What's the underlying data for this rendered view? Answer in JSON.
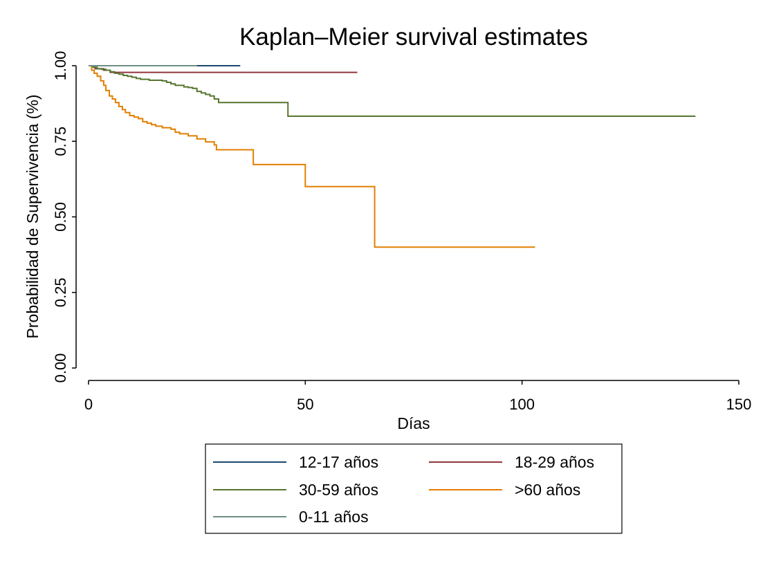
{
  "chart_data": {
    "type": "line",
    "title": "Kaplan–Meier survival estimates",
    "xlabel": "Días",
    "ylabel": "Probabilidad de Supervivencia (%)",
    "xlim": [
      0,
      150
    ],
    "ylim": [
      0,
      1
    ],
    "xticks": [
      {
        "value": 0,
        "label": "0"
      },
      {
        "value": 50,
        "label": "50"
      },
      {
        "value": 100,
        "label": "100"
      },
      {
        "value": 150,
        "label": "150"
      }
    ],
    "yticks": [
      {
        "value": 0,
        "label": "0.00"
      },
      {
        "value": 0.25,
        "label": "0.25"
      },
      {
        "value": 0.5,
        "label": "0.50"
      },
      {
        "value": 0.75,
        "label": "0.75"
      },
      {
        "value": 1,
        "label": "1.00"
      }
    ],
    "grid": false,
    "legend_position": "bottom",
    "series": [
      {
        "name": "12-17 años",
        "color": "#1a476f",
        "points": [
          [
            0,
            1.0
          ],
          [
            35,
            1.0
          ]
        ]
      },
      {
        "name": "18-29 años",
        "color": "#90353b",
        "points": [
          [
            0,
            1.0
          ],
          [
            1.5,
            0.99
          ],
          [
            3.5,
            0.985
          ],
          [
            5,
            0.978
          ],
          [
            62,
            0.978
          ]
        ]
      },
      {
        "name": "30-59 años",
        "color": "#55752f",
        "points": [
          [
            0,
            1.0
          ],
          [
            1,
            0.995
          ],
          [
            2,
            0.99
          ],
          [
            3,
            0.988
          ],
          [
            4,
            0.985
          ],
          [
            5,
            0.98
          ],
          [
            6,
            0.975
          ],
          [
            7,
            0.972
          ],
          [
            8,
            0.968
          ],
          [
            9,
            0.965
          ],
          [
            10,
            0.962
          ],
          [
            11,
            0.958
          ],
          [
            12,
            0.955
          ],
          [
            14,
            0.952
          ],
          [
            17,
            0.95
          ],
          [
            18,
            0.945
          ],
          [
            19,
            0.94
          ],
          [
            20,
            0.935
          ],
          [
            22,
            0.93
          ],
          [
            23,
            0.928
          ],
          [
            24,
            0.925
          ],
          [
            25,
            0.915
          ],
          [
            26,
            0.91
          ],
          [
            27,
            0.905
          ],
          [
            28,
            0.9
          ],
          [
            29,
            0.89
          ],
          [
            30,
            0.878
          ],
          [
            46,
            0.833
          ],
          [
            140,
            0.833
          ]
        ]
      },
      {
        "name": ">60 años",
        "color": "#e37e00",
        "points": [
          [
            0,
            1.0
          ],
          [
            0.7,
            0.985
          ],
          [
            1.3,
            0.975
          ],
          [
            2,
            0.965
          ],
          [
            2.8,
            0.95
          ],
          [
            3.5,
            0.935
          ],
          [
            4,
            0.918
          ],
          [
            4.8,
            0.9
          ],
          [
            5.5,
            0.89
          ],
          [
            6.2,
            0.878
          ],
          [
            7,
            0.865
          ],
          [
            7.8,
            0.855
          ],
          [
            8.5,
            0.845
          ],
          [
            9.5,
            0.835
          ],
          [
            10.5,
            0.83
          ],
          [
            11.5,
            0.825
          ],
          [
            12.5,
            0.815
          ],
          [
            13.5,
            0.81
          ],
          [
            14.5,
            0.805
          ],
          [
            15.5,
            0.8
          ],
          [
            17,
            0.795
          ],
          [
            19,
            0.79
          ],
          [
            20,
            0.78
          ],
          [
            21,
            0.775
          ],
          [
            23,
            0.768
          ],
          [
            25,
            0.758
          ],
          [
            27,
            0.748
          ],
          [
            29,
            0.738
          ],
          [
            29.5,
            0.722
          ],
          [
            38,
            0.673
          ],
          [
            50,
            0.6
          ],
          [
            66,
            0.4
          ],
          [
            103,
            0.4
          ]
        ]
      },
      {
        "name": "0-11 años",
        "color": "#6e8e84",
        "points": [
          [
            0,
            1.0
          ],
          [
            25,
            1.0
          ]
        ]
      }
    ]
  }
}
